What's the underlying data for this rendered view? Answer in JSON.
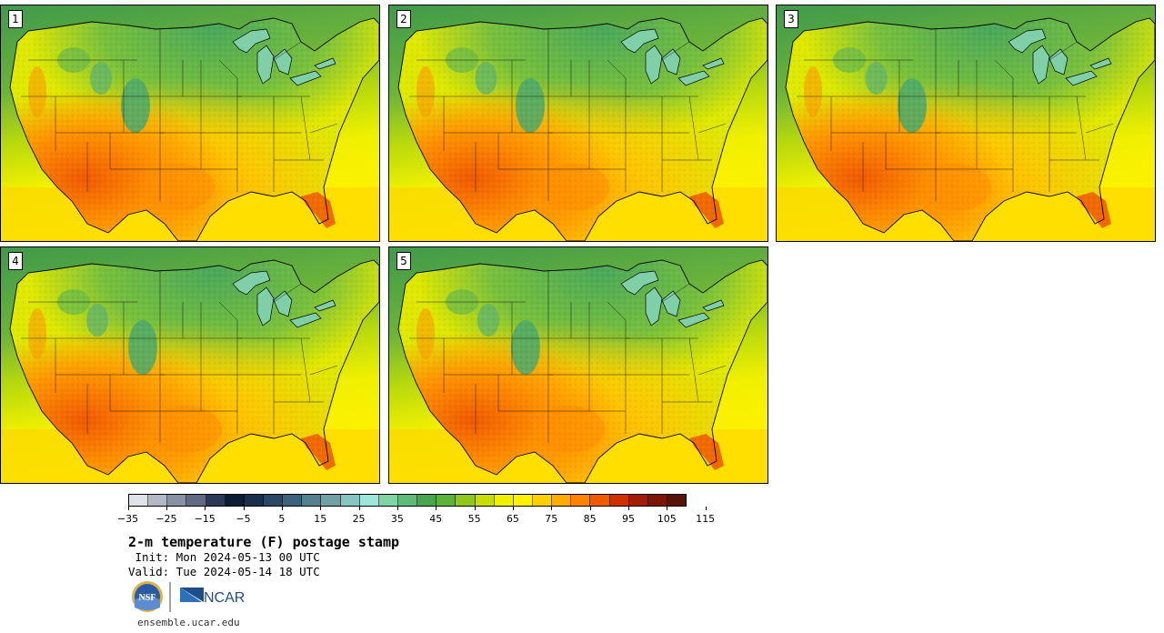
{
  "stamps": [
    {
      "number": "1"
    },
    {
      "number": "2"
    },
    {
      "number": "3"
    },
    {
      "number": "4"
    },
    {
      "number": "5"
    }
  ],
  "colorbar": {
    "colors": [
      "#e0e2ea",
      "#b4b8c6",
      "#8890a4",
      "#606a84",
      "#2c3a58",
      "#0c1c34",
      "#1a2f4c",
      "#2b4766",
      "#3f627c",
      "#57808f",
      "#6fa1a6",
      "#86c5c2",
      "#9ee6da",
      "#7fd4a4",
      "#5fbc78",
      "#47a64e",
      "#5db33a",
      "#8fc81b",
      "#c8dd06",
      "#f0f000",
      "#fff200",
      "#ffd000",
      "#ffab00",
      "#ff8200",
      "#f05a00",
      "#d03000",
      "#a41c04",
      "#7e1606",
      "#581206"
    ],
    "tick_labels": [
      "−35",
      "−25",
      "−15",
      "−5",
      "5",
      "15",
      "25",
      "35",
      "45",
      "55",
      "65",
      "75",
      "85",
      "95",
      "105",
      "115"
    ]
  },
  "title": "2-m temperature (F) postage stamp",
  "init_line": " Init: Mon 2024-05-13 00 UTC",
  "valid_line": "Valid: Tue 2024-05-14 18 UTC",
  "logos": {
    "nsf_text": "NSF",
    "ncar_text": "NCAR"
  },
  "footer": "ensemble.ucar.edu",
  "palette": {
    "ocean_north": "#52a852",
    "ocean_mid": "#c5de0a",
    "ocean_south": "#fff000",
    "gulf": "#ffcc00",
    "land_green": "#7cc53a",
    "land_yellow": "#e3e900",
    "land_orange": "#ffa200",
    "land_red": "#f06400",
    "mountain": "#5ab078",
    "lake": "#7fcfa8"
  }
}
